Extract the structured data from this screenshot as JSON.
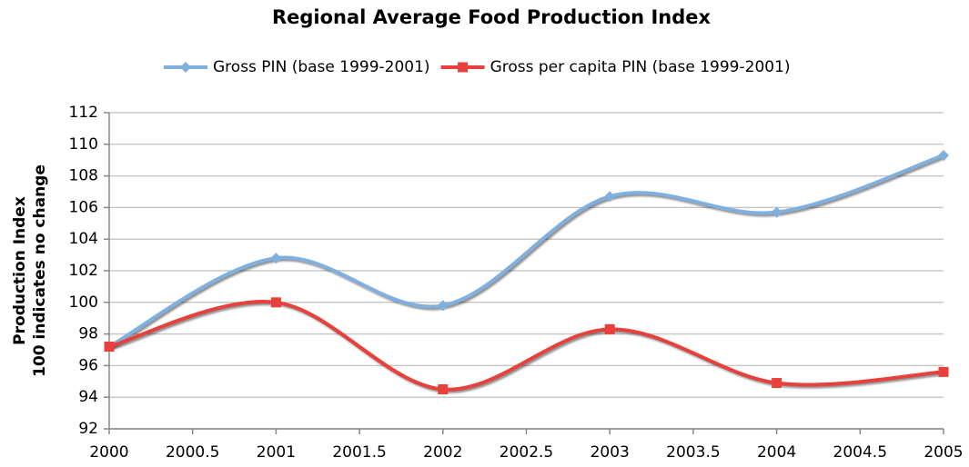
{
  "chart_data": {
    "type": "line",
    "title": "Regional Average Food Production Index",
    "y_label": [
      "Production Index",
      "100 indicates no change"
    ],
    "x": [
      2000,
      2001,
      2002,
      2003,
      2004,
      2005
    ],
    "series": [
      {
        "name": "Gross PIN (base 1999-2001)",
        "color": "#7fb0e0",
        "marker": "diamond",
        "values": [
          97.2,
          102.8,
          99.8,
          106.7,
          105.7,
          109.3
        ]
      },
      {
        "name": "Gross per capita PIN (base 1999-2001)",
        "color": "#e8403a",
        "marker": "square",
        "values": [
          97.2,
          100.0,
          94.5,
          98.3,
          94.9,
          95.6
        ]
      }
    ],
    "xlim": [
      2000,
      2005
    ],
    "xticks": [
      2000,
      2000.5,
      2001,
      2001.5,
      2002,
      2002.5,
      2003,
      2003.5,
      2004,
      2004.5,
      2005
    ],
    "ylim": [
      92,
      112
    ],
    "yticks": [
      92,
      94,
      96,
      98,
      100,
      102,
      104,
      106,
      108,
      110,
      112
    ],
    "grid": true,
    "smooth": true,
    "legend": "top"
  }
}
